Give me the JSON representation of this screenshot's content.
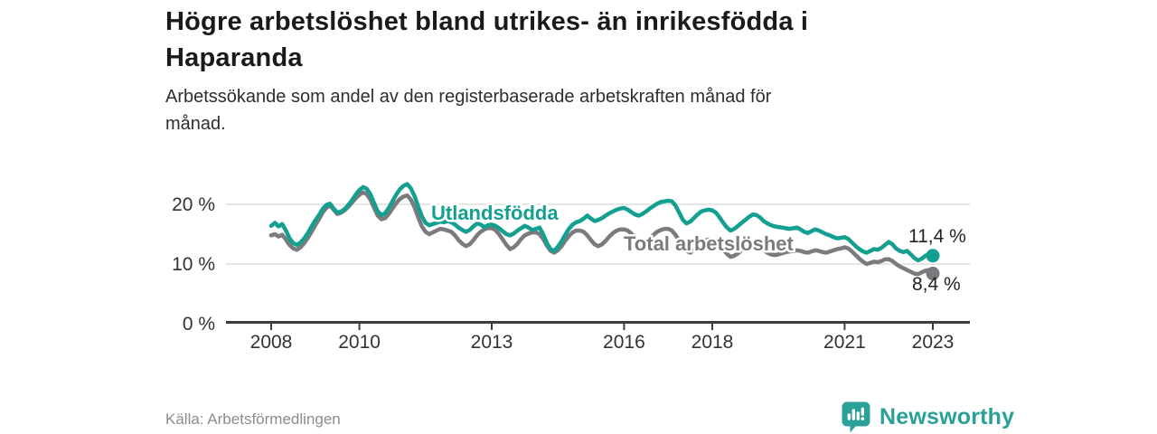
{
  "header": {
    "title": "Högre arbetslöshet bland utrikes- än inrikesfödda i\nHaparanda",
    "subtitle": "Arbetssökande som andel av den registerbaserade arbetskraften månad för\nmånad."
  },
  "footer": {
    "source": "Källa: Arbetsförmedlingen",
    "brand": "Newsworthy",
    "brand_logo_icon": "speech-bubble-bar-chart-icon"
  },
  "colors": {
    "accent_teal": "#14a091",
    "series_gray": "#7b7b7f",
    "logo_teal": "#2aa198",
    "gridline": "#dddddd",
    "axis": "#3d3d3d",
    "tick_text": "#333333",
    "value_label_text": "#222222"
  },
  "chart_data": {
    "type": "line",
    "title": "Högre arbetslöshet bland utrikes- än inrikesfödda i Haparanda",
    "subtitle": "Arbetssökande som andel av den registerbaserade arbetskraften månad för månad.",
    "x_unit": "month",
    "x_start": "2008-01",
    "x_end": "2023-01",
    "x_ticks": [
      2008,
      2010,
      2013,
      2016,
      2018,
      2021,
      2023
    ],
    "y_ticks": [
      0,
      10,
      20
    ],
    "y_tick_suffix": " %",
    "ylim": [
      0,
      24
    ],
    "grid": "horizontal",
    "legend_position": "inline-labels",
    "series": [
      {
        "name": "Utlandsfödda",
        "color": "#14a091",
        "end_label": "11,4 %",
        "last_value": 11.4,
        "values": [
          16.4,
          16.9,
          16.3,
          16.7,
          15.6,
          14.3,
          13.5,
          13.2,
          13.6,
          14.3,
          15.2,
          16.3,
          17.3,
          18.2,
          19.2,
          19.9,
          20.1,
          19.3,
          18.6,
          18.8,
          19.2,
          19.9,
          20.7,
          21.6,
          22.4,
          22.9,
          22.6,
          21.7,
          20.2,
          18.8,
          18.2,
          18.5,
          19.4,
          20.5,
          21.6,
          22.5,
          23.1,
          23.4,
          22.7,
          21.4,
          19.6,
          18.0,
          16.9,
          16.5,
          16.7,
          16.9,
          17.1,
          17.0,
          17.2,
          17.0,
          16.6,
          16.1,
          15.7,
          15.4,
          15.7,
          16.3,
          16.8,
          16.6,
          16.2,
          16.5,
          16.6,
          16.4,
          16.0,
          15.5,
          15.0,
          14.8,
          15.1,
          15.6,
          16.0,
          16.4,
          16.1,
          15.7,
          15.9,
          16.1,
          15.0,
          13.5,
          12.5,
          12.2,
          12.9,
          13.8,
          14.9,
          15.9,
          16.6,
          17.0,
          17.2,
          17.6,
          18.1,
          17.6,
          17.2,
          17.4,
          17.7,
          18.1,
          18.5,
          18.8,
          19.1,
          19.3,
          19.4,
          19.1,
          18.7,
          18.3,
          18.1,
          18.4,
          18.8,
          19.3,
          19.7,
          20.1,
          20.4,
          20.5,
          20.6,
          20.5,
          19.8,
          18.6,
          17.4,
          16.8,
          17.1,
          17.7,
          18.3,
          18.8,
          19.0,
          19.1,
          19.0,
          18.6,
          17.8,
          16.9,
          16.1,
          15.6,
          15.9,
          16.4,
          16.9,
          17.4,
          17.9,
          18.3,
          18.2,
          17.8,
          17.2,
          16.8,
          16.5,
          16.3,
          16.2,
          16.1,
          16.0,
          15.9,
          16.0,
          16.1,
          15.8,
          15.4,
          15.2,
          15.5,
          15.8,
          15.6,
          15.3,
          15.0,
          14.8,
          14.5,
          14.3,
          14.4,
          14.5,
          14.2,
          13.6,
          13.0,
          12.5,
          12.1,
          11.9,
          12.2,
          12.5,
          12.4,
          12.7,
          13.2,
          13.7,
          13.3,
          12.6,
          12.2,
          12.0,
          12.2,
          11.6,
          11.0,
          10.6,
          10.9,
          11.4,
          11.7,
          11.4
        ]
      },
      {
        "name": "Total arbetslöshet",
        "color": "#7b7b7f",
        "end_label": "8,4 %",
        "last_value": 8.4,
        "values": [
          14.8,
          15.0,
          14.6,
          14.9,
          14.1,
          13.2,
          12.6,
          12.4,
          12.8,
          13.5,
          14.4,
          15.4,
          16.5,
          17.5,
          18.6,
          19.4,
          19.8,
          19.1,
          18.4,
          18.6,
          19.0,
          19.6,
          20.3,
          21.0,
          21.6,
          22.0,
          21.7,
          20.8,
          19.4,
          18.1,
          17.5,
          17.7,
          18.4,
          19.3,
          20.2,
          20.9,
          21.3,
          21.5,
          20.8,
          19.5,
          17.8,
          16.3,
          15.4,
          15.0,
          15.3,
          15.6,
          15.9,
          15.8,
          15.6,
          15.4,
          14.8,
          14.0,
          13.4,
          13.0,
          13.3,
          14.0,
          14.8,
          15.4,
          15.8,
          16.0,
          16.0,
          15.7,
          15.0,
          14.1,
          13.2,
          12.5,
          12.8,
          13.4,
          14.2,
          14.8,
          15.1,
          15.3,
          15.3,
          15.0,
          14.2,
          13.1,
          12.2,
          11.9,
          12.3,
          13.0,
          13.9,
          14.7,
          15.3,
          15.6,
          15.6,
          15.4,
          14.8,
          14.0,
          13.3,
          13.0,
          13.3,
          13.9,
          14.6,
          15.2,
          15.6,
          15.8,
          15.8,
          15.6,
          15.1,
          14.4,
          13.8,
          13.5,
          13.8,
          14.3,
          14.9,
          15.4,
          15.7,
          15.9,
          15.9,
          15.6,
          14.9,
          13.9,
          12.9,
          12.2,
          11.9,
          12.3,
          12.9,
          13.5,
          13.9,
          14.1,
          14.1,
          13.8,
          13.2,
          12.4,
          11.7,
          11.2,
          11.4,
          11.8,
          12.3,
          12.7,
          13.0,
          13.2,
          13.1,
          12.8,
          12.3,
          11.9,
          11.6,
          11.5,
          11.6,
          11.8,
          12.0,
          12.1,
          12.2,
          12.3,
          12.2,
          12.0,
          11.9,
          12.1,
          12.3,
          12.2,
          12.0,
          11.9,
          12.1,
          12.3,
          12.5,
          12.6,
          12.8,
          12.6,
          12.1,
          11.5,
          10.9,
          10.4,
          10.0,
          10.2,
          10.4,
          10.3,
          10.5,
          10.8,
          10.8,
          10.5,
          10.0,
          9.6,
          9.3,
          9.0,
          8.7,
          8.4,
          8.3,
          8.6,
          8.9,
          9.0,
          8.4
        ]
      }
    ]
  }
}
